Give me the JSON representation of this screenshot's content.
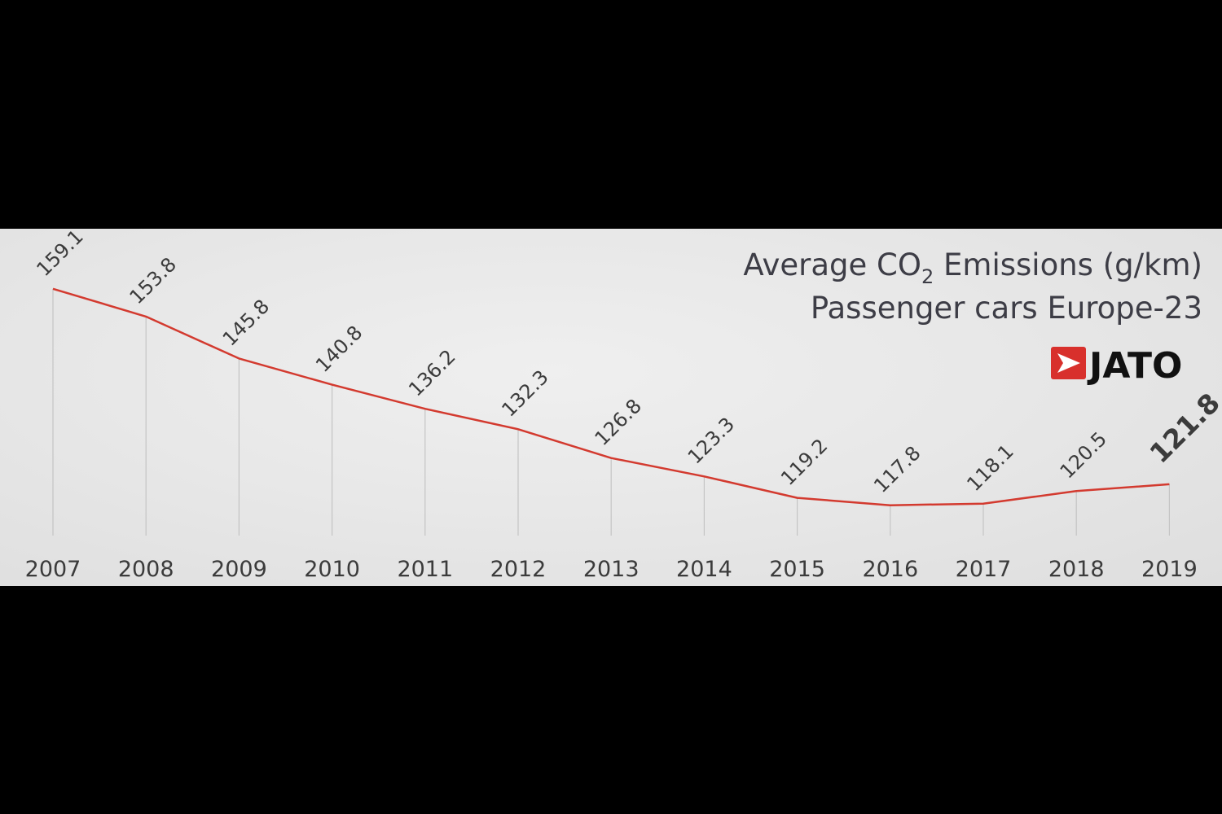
{
  "chart_data": {
    "type": "line",
    "title": "Average CO",
    "title_subscript": "2",
    "title_suffix": " Emissions (g/km)",
    "subtitle": "Passenger cars Europe-23",
    "xlabel": "",
    "ylabel": "",
    "categories": [
      "2007",
      "2008",
      "2009",
      "2010",
      "2011",
      "2012",
      "2013",
      "2014",
      "2015",
      "2016",
      "2017",
      "2018",
      "2019"
    ],
    "series": [
      {
        "values": [
          159.1,
          153.8,
          145.8,
          140.8,
          136.2,
          132.3,
          126.8,
          123.3,
          119.2,
          117.8,
          118.1,
          120.5,
          121.8
        ]
      }
    ],
    "value_labels": [
      "159.1",
      "153.8",
      "145.8",
      "140.8",
      "136.2",
      "132.3",
      "126.8",
      "123.3",
      "119.2",
      "117.8",
      "118.1",
      "120.5",
      "121.8"
    ],
    "ylim": [
      112,
      160
    ],
    "grid": "vertical drop lines",
    "legend": "none",
    "line_color": "#d33a2f",
    "highlighted_point": "2019"
  },
  "logo": {
    "text": "JATO",
    "color": "#d8302c"
  }
}
